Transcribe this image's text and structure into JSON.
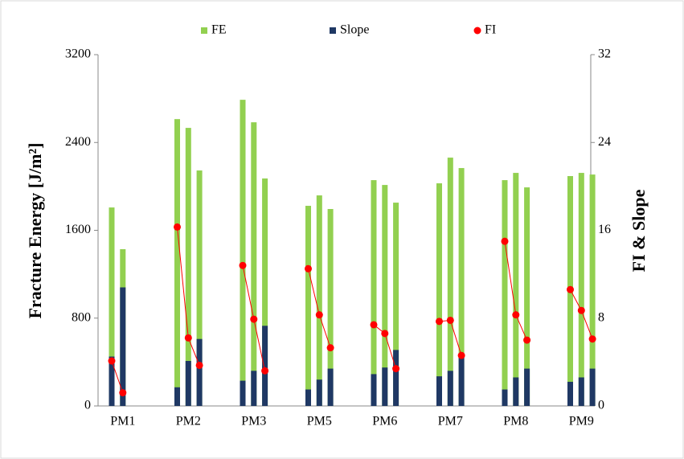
{
  "chart_data": {
    "type": "bar",
    "categories": [
      null,
      "PM1",
      null,
      null,
      null,
      "PM2",
      null,
      null,
      null,
      "PM3",
      null,
      null,
      null,
      "PM5",
      null,
      null,
      null,
      "PM6",
      null,
      null,
      null,
      "PM7",
      null,
      null,
      null,
      "PM8",
      null,
      null,
      null,
      "PM9",
      null,
      null
    ],
    "series": [
      {
        "name": "FE",
        "color": "#92d050",
        "type": "bar",
        "axis": "y",
        "values": [
          1808,
          1428,
          null,
          null,
          2613,
          2533,
          2145,
          null,
          2789,
          2584,
          2072,
          null,
          1823,
          1918,
          1794,
          null,
          2057,
          2013,
          1852,
          null,
          2028,
          2262,
          2167,
          null,
          2057,
          2123,
          1991,
          null,
          2094,
          2123,
          2108,
          null
        ]
      },
      {
        "name": "Slope",
        "color": "#1f3864",
        "type": "bar",
        "axis": "y2",
        "values": [
          4.5,
          10.8,
          null,
          null,
          1.7,
          4.1,
          6.1,
          null,
          2.3,
          3.2,
          7.3,
          null,
          1.5,
          2.4,
          3.4,
          null,
          2.9,
          3.5,
          5.1,
          null,
          2.7,
          3.2,
          4.4,
          null,
          1.5,
          2.6,
          3.4,
          null,
          2.2,
          2.6,
          3.4,
          null
        ]
      },
      {
        "name": "FI",
        "color": "#ff0000",
        "type": "line",
        "axis": "y2",
        "values": [
          4.1,
          1.2,
          null,
          null,
          16.3,
          6.2,
          3.7,
          null,
          12.8,
          7.9,
          3.2,
          null,
          12.5,
          8.3,
          5.3,
          null,
          7.4,
          6.6,
          3.4,
          null,
          7.7,
          7.8,
          4.6,
          null,
          15.0,
          8.3,
          6.0,
          null,
          10.6,
          8.7,
          6.1,
          null
        ]
      }
    ],
    "y_label": "Fracture Energy [J/m²]",
    "y2_label": "FI & Slope",
    "ylim": [
      0,
      3200
    ],
    "yticks": [
      0,
      800,
      1600,
      2400,
      3200
    ],
    "y2lim": [
      0,
      32
    ],
    "y2ticks": [
      0,
      8,
      16,
      24,
      32
    ],
    "legend": "top"
  }
}
